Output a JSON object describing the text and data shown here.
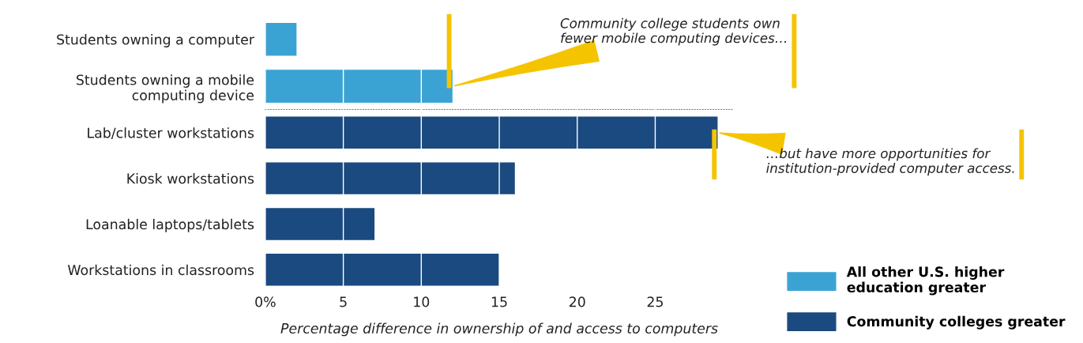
{
  "chart_data": [
    {
      "type": "bar",
      "orientation": "horizontal",
      "categories": [
        "Students owning a computer",
        "Students owning a mobile\ncomputing device"
      ],
      "series": [
        {
          "name": "All other U.S. higher\neducation greater",
          "color": "#3ba3d4",
          "values": [
            2,
            12
          ]
        }
      ],
      "xlim": [
        0,
        30
      ],
      "xticks": [
        0,
        5,
        10,
        15,
        20,
        25
      ],
      "grid": "x",
      "tick_labels": "y",
      "legend": "bottom right",
      "annotations": [
        {
          "text": "Community college students own\nfewer mobile computing devices…",
          "x": 12,
          "y": "Students owning a mobile\ncomputing device"
        }
      ]
    },
    {
      "type": "bar",
      "orientation": "horizontal",
      "categories": [
        "Lab/cluster workstations",
        "Kiosk workstations",
        "Loanable laptops/tablets",
        "Workstations in classrooms"
      ],
      "series": [
        {
          "name": "Community colleges greater",
          "color": "#1a4a7f",
          "values": [
            29,
            16,
            7,
            15
          ]
        }
      ],
      "xlim": [
        0,
        30
      ],
      "xticks": [
        {
          "value": 0,
          "label": "0%"
        },
        5,
        10,
        15,
        20,
        25
      ],
      "grid": "x",
      "legend": "bottom right",
      "xlabel": "Percentage difference in ownership of and access to computers",
      "annotations": [
        {
          "text": "…but have more opportunities for\ninstitution-provided computer access.",
          "x": 29,
          "y": "Lab/cluster workstations"
        }
      ]
    }
  ]
}
